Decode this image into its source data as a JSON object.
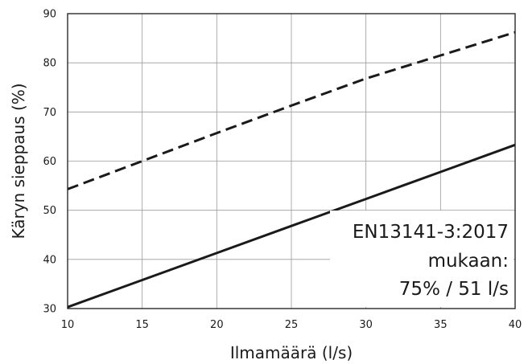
{
  "chart_data": {
    "type": "line",
    "xlabel": "Ilmamäärä (l/s)",
    "ylabel": "Käryn sieppaus (%)",
    "xlim": [
      10,
      40
    ],
    "ylim": [
      30,
      90
    ],
    "xticks": [
      "10",
      "15",
      "20",
      "25",
      "30",
      "35",
      "40"
    ],
    "yticks": [
      "30",
      "40",
      "50",
      "60",
      "70",
      "80",
      "90"
    ],
    "grid": true,
    "legend": "none",
    "series": [
      {
        "style": "dashed",
        "color": "#1a1a1a",
        "x": [
          10,
          15,
          20,
          25,
          30,
          35,
          40
        ],
        "y": [
          54.3,
          60.0,
          65.7,
          71.3,
          76.8,
          81.5,
          86.2
        ]
      },
      {
        "style": "solid",
        "color": "#1a1a1a",
        "x": [
          10,
          15,
          20,
          25,
          30,
          35,
          40
        ],
        "y": [
          30.3,
          35.8,
          41.3,
          46.8,
          52.3,
          57.8,
          63.3
        ]
      }
    ],
    "annotation": [
      "EN13141-3:2017",
      "mukaan:",
      "75% / 51 l/s"
    ]
  }
}
